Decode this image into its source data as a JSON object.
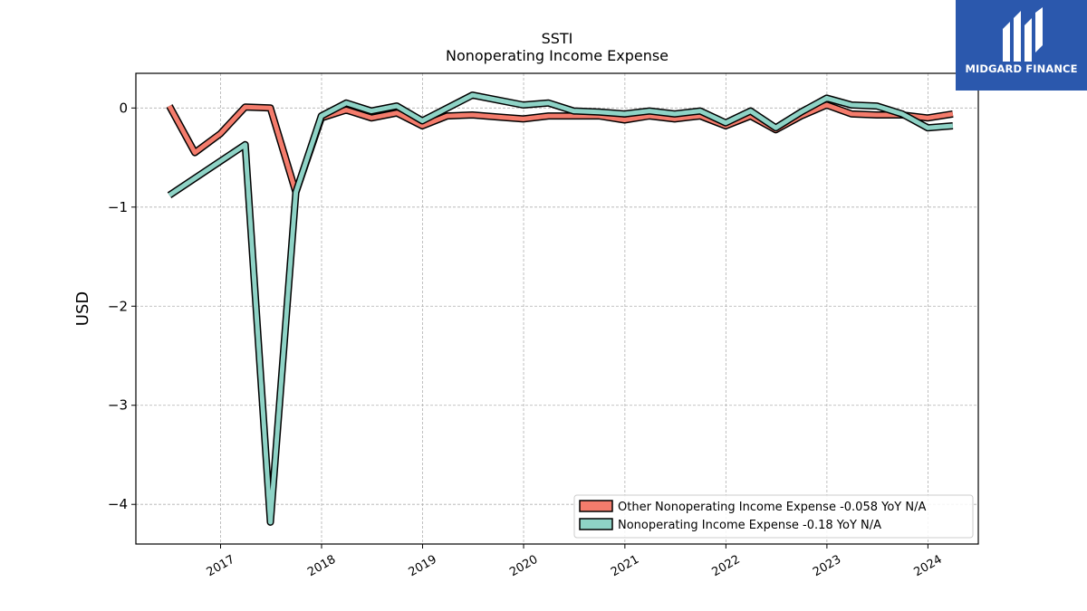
{
  "chart_data": {
    "type": "line",
    "title": "SSTI",
    "subtitle": "Nonoperating Income Expense",
    "xlabel": "",
    "ylabel": "USD",
    "xlim": [
      "2016-03-01",
      "2024-07-01"
    ],
    "ylim": [
      -4.4,
      0.35
    ],
    "yticks": [
      0,
      -1,
      -2,
      -3,
      -4
    ],
    "ytick_labels": [
      "0",
      "−1",
      "−2",
      "−3",
      "−4"
    ],
    "xticks": [
      "2017-01-01",
      "2018-01-01",
      "2019-01-01",
      "2020-01-01",
      "2021-01-01",
      "2022-01-01",
      "2023-01-01",
      "2024-01-01"
    ],
    "xtick_labels": [
      "2017",
      "2018",
      "2019",
      "2020",
      "2021",
      "2022",
      "2023",
      "2024"
    ],
    "grid": true,
    "legend_position": "lower-right",
    "series": [
      {
        "name": "Other Nonoperating Income Expense  -0.058 YoY N/A",
        "color": "#f47c6c",
        "points": [
          [
            "2016-06-30",
            0.02
          ],
          [
            "2016-09-30",
            -0.45
          ],
          [
            "2016-12-31",
            -0.26
          ],
          [
            "2017-03-31",
            0.01
          ],
          [
            "2017-06-30",
            0.0
          ],
          [
            "2017-09-30",
            -0.85
          ],
          [
            "2017-12-31",
            -0.1
          ],
          [
            "2018-03-31",
            -0.02
          ],
          [
            "2018-06-30",
            -0.1
          ],
          [
            "2018-09-30",
            -0.05
          ],
          [
            "2018-12-31",
            -0.18
          ],
          [
            "2019-03-31",
            -0.08
          ],
          [
            "2019-06-30",
            -0.07
          ],
          [
            "2019-09-30",
            -0.09
          ],
          [
            "2019-12-31",
            -0.11
          ],
          [
            "2020-03-31",
            -0.08
          ],
          [
            "2020-06-30",
            -0.08
          ],
          [
            "2020-09-30",
            -0.08
          ],
          [
            "2020-12-31",
            -0.12
          ],
          [
            "2021-03-31",
            -0.08
          ],
          [
            "2021-06-30",
            -0.11
          ],
          [
            "2021-09-30",
            -0.08
          ],
          [
            "2021-12-31",
            -0.18
          ],
          [
            "2022-03-31",
            -0.08
          ],
          [
            "2022-06-30",
            -0.22
          ],
          [
            "2022-09-30",
            -0.08
          ],
          [
            "2022-12-31",
            0.03
          ],
          [
            "2023-03-31",
            -0.06
          ],
          [
            "2023-06-30",
            -0.07
          ],
          [
            "2023-09-30",
            -0.07
          ],
          [
            "2023-12-31",
            -0.1
          ],
          [
            "2024-03-31",
            -0.06
          ]
        ]
      },
      {
        "name": "Nonoperating Income Expense  -0.18 YoY N/A",
        "color": "#8ed3c6",
        "points": [
          [
            "2016-06-30",
            -0.88
          ],
          [
            "2017-03-31",
            -0.37
          ],
          [
            "2017-06-30",
            -4.18
          ],
          [
            "2017-09-30",
            -0.85
          ],
          [
            "2017-12-31",
            -0.08
          ],
          [
            "2018-03-31",
            0.05
          ],
          [
            "2018-06-30",
            -0.03
          ],
          [
            "2018-09-30",
            0.02
          ],
          [
            "2018-12-31",
            -0.13
          ],
          [
            "2019-06-30",
            0.13
          ],
          [
            "2019-12-31",
            0.03
          ],
          [
            "2020-03-31",
            0.05
          ],
          [
            "2020-06-30",
            -0.03
          ],
          [
            "2020-09-30",
            -0.04
          ],
          [
            "2020-12-31",
            -0.06
          ],
          [
            "2021-03-31",
            -0.03
          ],
          [
            "2021-06-30",
            -0.06
          ],
          [
            "2021-09-30",
            -0.03
          ],
          [
            "2021-12-31",
            -0.15
          ],
          [
            "2022-03-31",
            -0.03
          ],
          [
            "2022-06-30",
            -0.2
          ],
          [
            "2022-09-30",
            -0.04
          ],
          [
            "2022-12-31",
            0.1
          ],
          [
            "2023-03-31",
            0.03
          ],
          [
            "2023-06-30",
            0.02
          ],
          [
            "2023-09-30",
            -0.06
          ],
          [
            "2023-12-31",
            -0.2
          ],
          [
            "2024-03-31",
            -0.18
          ]
        ]
      }
    ]
  },
  "logo": {
    "text": "MIDGARD FINANCE",
    "color": "#2b58ad"
  }
}
